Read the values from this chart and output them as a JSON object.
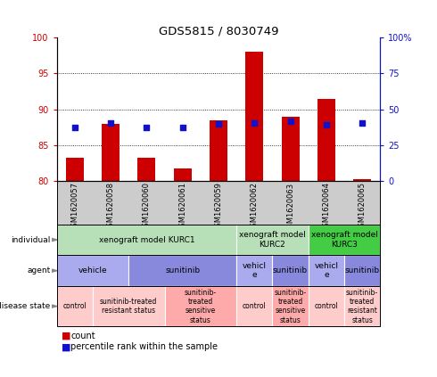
{
  "title": "GDS5815 / 8030749",
  "samples": [
    "GSM1620057",
    "GSM1620058",
    "GSM1620060",
    "GSM1620061",
    "GSM1620059",
    "GSM1620062",
    "GSM1620063",
    "GSM1620064",
    "GSM1620065"
  ],
  "count_values": [
    83.2,
    88.0,
    83.2,
    81.7,
    88.5,
    98.0,
    89.0,
    91.5,
    80.2
  ],
  "percentile_values": [
    37.5,
    40.5,
    37.5,
    37.5,
    40.0,
    40.5,
    42.0,
    39.0,
    40.5
  ],
  "ylim_left": [
    80,
    100
  ],
  "ylim_right": [
    0,
    100
  ],
  "yticks_left": [
    80,
    85,
    90,
    95,
    100
  ],
  "yticks_right": [
    0,
    25,
    50,
    75,
    100
  ],
  "ytick_labels_right": [
    "0",
    "25",
    "50",
    "75",
    "100%"
  ],
  "bar_color": "#cc0000",
  "dot_color": "#1111cc",
  "individual_spans": [
    {
      "label": "xenograft model KURC1",
      "start": 0,
      "end": 5,
      "color": "#b8e0b8"
    },
    {
      "label": "xenograft model\nKURC2",
      "start": 5,
      "end": 7,
      "color": "#b8e0b8"
    },
    {
      "label": "xenograft model\nKURC3",
      "start": 7,
      "end": 9,
      "color": "#44cc44"
    }
  ],
  "agent_spans": [
    {
      "label": "vehicle",
      "start": 0,
      "end": 2,
      "color": "#aaaaee"
    },
    {
      "label": "sunitinib",
      "start": 2,
      "end": 5,
      "color": "#8888dd"
    },
    {
      "label": "vehicl\ne",
      "start": 5,
      "end": 6,
      "color": "#aaaaee"
    },
    {
      "label": "sunitinib",
      "start": 6,
      "end": 7,
      "color": "#8888dd"
    },
    {
      "label": "vehicl\ne",
      "start": 7,
      "end": 8,
      "color": "#aaaaee"
    },
    {
      "label": "sunitinib",
      "start": 8,
      "end": 9,
      "color": "#8888dd"
    }
  ],
  "disease_spans": [
    {
      "label": "control",
      "start": 0,
      "end": 1,
      "color": "#ffcccc"
    },
    {
      "label": "sunitinib-treated\nresistant status",
      "start": 1,
      "end": 3,
      "color": "#ffcccc"
    },
    {
      "label": "sunitinib-\ntreated\nsensitive\nstatus",
      "start": 3,
      "end": 5,
      "color": "#ffaaaa"
    },
    {
      "label": "control",
      "start": 5,
      "end": 6,
      "color": "#ffcccc"
    },
    {
      "label": "sunitinib-\ntreated\nsensitive\nstatus",
      "start": 6,
      "end": 7,
      "color": "#ffaaaa"
    },
    {
      "label": "control",
      "start": 7,
      "end": 8,
      "color": "#ffcccc"
    },
    {
      "label": "sunitinib-\ntreated\nresistant\nstatus",
      "start": 8,
      "end": 9,
      "color": "#ffcccc"
    }
  ],
  "row_labels": [
    "individual",
    "agent",
    "disease state"
  ],
  "legend_count_color": "#cc0000",
  "legend_dot_color": "#1111cc",
  "bg_color": "#ffffff",
  "axis_color_left": "#cc0000",
  "axis_color_right": "#1111cc",
  "sample_bg_color": "#cccccc"
}
